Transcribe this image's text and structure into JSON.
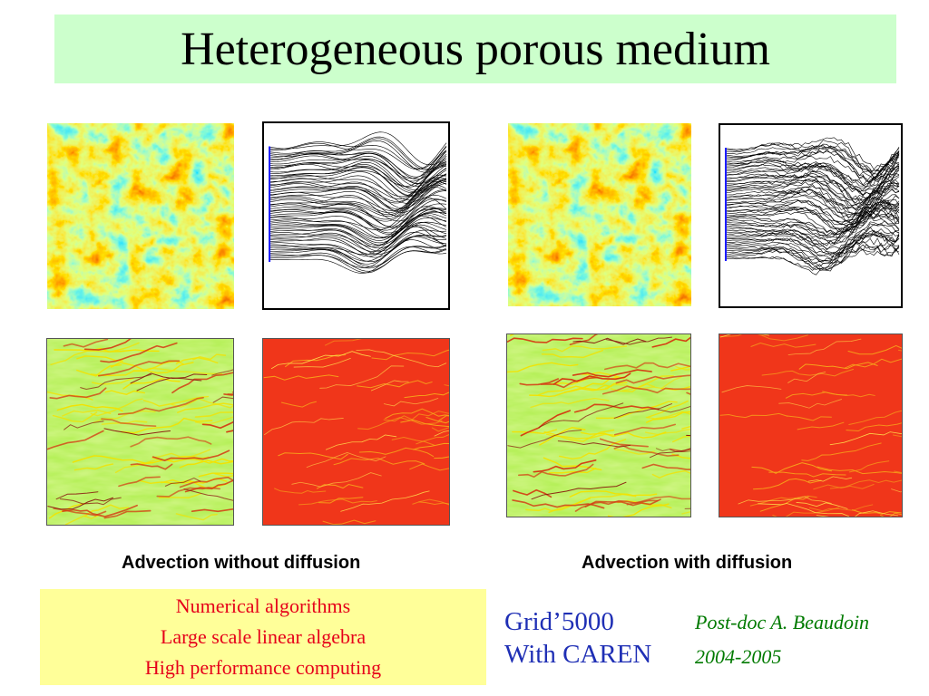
{
  "title": "Heterogeneous porous medium",
  "captions": {
    "left": "Advection without diffusion",
    "right": "Advection with diffusion"
  },
  "topics": [
    "Numerical algorithms",
    "Large scale linear algebra",
    "High performance computing"
  ],
  "grid": {
    "line1": "Grid’5000",
    "line2": "With CAREN"
  },
  "credits": {
    "line1": "Post-doc A. Beaudoin",
    "line2": "2004-2005"
  },
  "colors": {
    "title_bg": "#ccffcc",
    "topics_bg": "#ffff99",
    "topics_text": "#e6001a",
    "grid_text": "#1f2fb5",
    "credit_text": "#007a00",
    "injection_line": "#1a1aff"
  },
  "panels": [
    {
      "kind": "permeability-field",
      "variant": "A"
    },
    {
      "kind": "particle-trajectories",
      "diffusion": false
    },
    {
      "kind": "permeability-field",
      "variant": "B"
    },
    {
      "kind": "particle-trajectories",
      "diffusion": true
    },
    {
      "kind": "concentration-yellow"
    },
    {
      "kind": "concentration-red"
    },
    {
      "kind": "concentration-yellow"
    },
    {
      "kind": "concentration-red"
    }
  ]
}
